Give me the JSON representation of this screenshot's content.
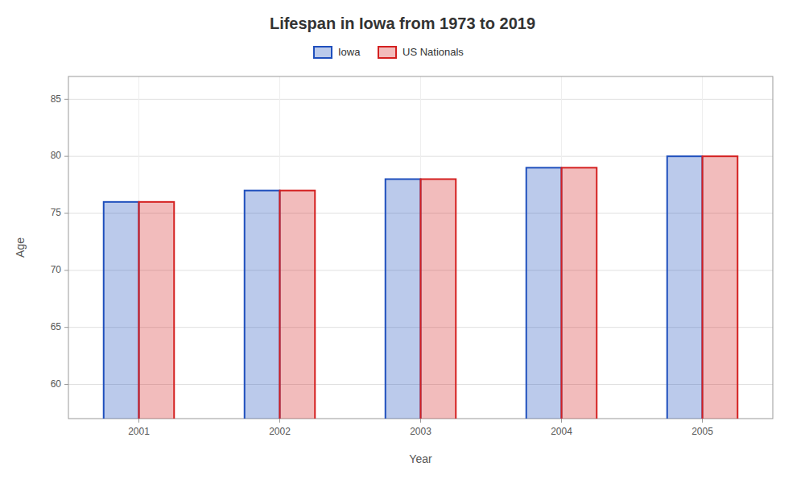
{
  "chart_data": {
    "type": "bar",
    "title": "Lifespan in Iowa from 1973 to 2019",
    "xlabel": "Year",
    "ylabel": "Age",
    "categories": [
      "2001",
      "2002",
      "2003",
      "2004",
      "2005"
    ],
    "series": [
      {
        "name": "Iowa",
        "color": "#1f4fbd",
        "values": [
          76,
          77,
          78,
          79,
          80
        ]
      },
      {
        "name": "US Nationals",
        "color": "#d42020",
        "values": [
          76,
          77,
          78,
          79,
          80
        ]
      }
    ],
    "ylim": [
      57,
      87
    ],
    "yticks": [
      60,
      65,
      70,
      75,
      80,
      85
    ],
    "grid": true,
    "legend": "top"
  }
}
